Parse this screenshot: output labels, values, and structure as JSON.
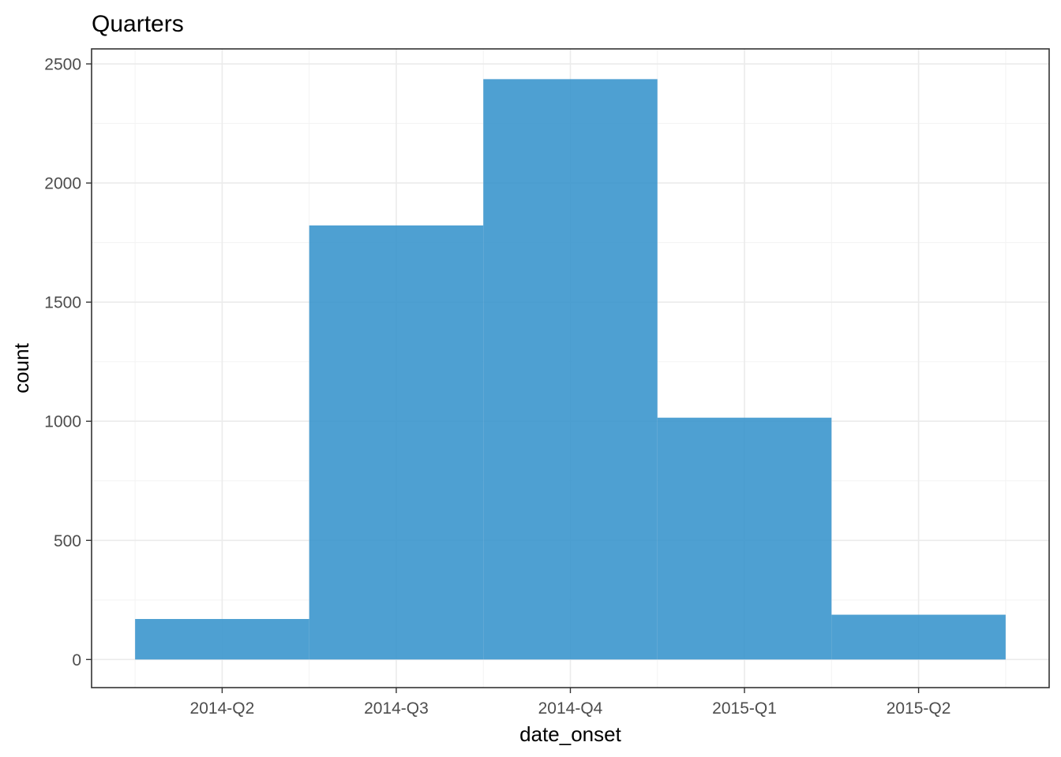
{
  "chart_data": {
    "type": "bar",
    "title": "Quarters",
    "xlabel": "date_onset",
    "ylabel": "count",
    "categories": [
      "2014-Q2",
      "2014-Q3",
      "2014-Q4",
      "2015-Q1",
      "2015-Q2"
    ],
    "values": [
      170,
      1822,
      2436,
      1015,
      188
    ],
    "ylim": [
      -118,
      2563
    ],
    "yticks": [
      0,
      500,
      1000,
      1500,
      2000,
      2500
    ],
    "ytick_labels": [
      "0",
      "500",
      "1000",
      "1500",
      "2000",
      "2500"
    ],
    "grid": true,
    "legend": "none",
    "bar_color": "#3b96cd",
    "bar_opacity": 0.9
  }
}
